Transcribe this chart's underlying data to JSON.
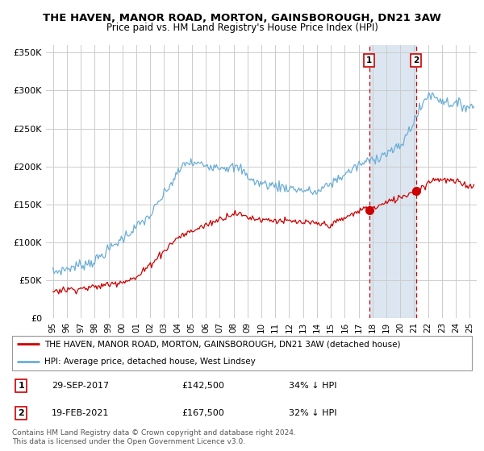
{
  "title": "THE HAVEN, MANOR ROAD, MORTON, GAINSBOROUGH, DN21 3AW",
  "subtitle": "Price paid vs. HM Land Registry's House Price Index (HPI)",
  "legend_line1": "THE HAVEN, MANOR ROAD, MORTON, GAINSBOROUGH, DN21 3AW (detached house)",
  "legend_line2": "HPI: Average price, detached house, West Lindsey",
  "sale1_date": "29-SEP-2017",
  "sale1_price": "£142,500",
  "sale1_hpi": "34% ↓ HPI",
  "sale2_date": "19-FEB-2021",
  "sale2_price": "£167,500",
  "sale2_hpi": "32% ↓ HPI",
  "footnote": "Contains HM Land Registry data © Crown copyright and database right 2024.\nThis data is licensed under the Open Government Licence v3.0.",
  "hpi_color": "#6baed6",
  "price_color": "#cc0000",
  "sale1_x": 2017.75,
  "sale1_y": 142500,
  "sale2_x": 2021.12,
  "sale2_y": 167500,
  "ylim": [
    0,
    360000
  ],
  "xlim": [
    1994.5,
    2025.5
  ],
  "yticks": [
    0,
    50000,
    100000,
    150000,
    200000,
    250000,
    300000,
    350000
  ],
  "xtick_labels": [
    "95",
    "96",
    "97",
    "98",
    "99",
    "00",
    "01",
    "02",
    "03",
    "04",
    "05",
    "06",
    "07",
    "08",
    "09",
    "10",
    "11",
    "12",
    "13",
    "14",
    "15",
    "16",
    "17",
    "18",
    "19",
    "20",
    "21",
    "22",
    "23",
    "24",
    "25"
  ],
  "xtick_values": [
    1995,
    1996,
    1997,
    1998,
    1999,
    2000,
    2001,
    2002,
    2003,
    2004,
    2005,
    2006,
    2007,
    2008,
    2009,
    2010,
    2011,
    2012,
    2013,
    2014,
    2015,
    2016,
    2017,
    2018,
    2019,
    2020,
    2021,
    2022,
    2023,
    2024,
    2025
  ],
  "background_color": "#ffffff",
  "shaded_color": "#dce6f1",
  "grid_color": "#cccccc"
}
